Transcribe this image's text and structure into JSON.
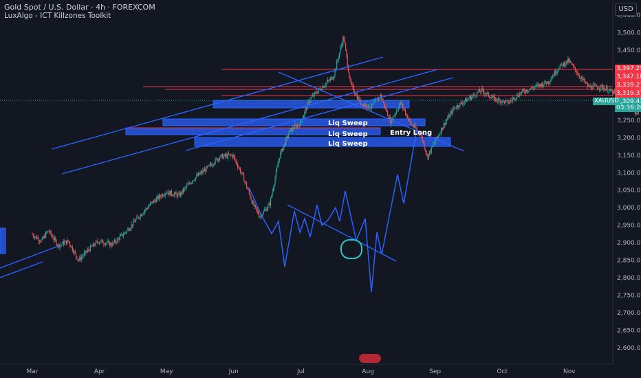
{
  "header": {
    "symbol_line": "Gold Spot / U.S. Dollar · 4h · FOREXCOM",
    "indicator_line": "LuxAlgo - ICT Killzones Toolkit"
  },
  "currency_button": "USD",
  "price_tags": [
    {
      "label": "3,397.25",
      "value": 3397.25,
      "color": "#f23645"
    },
    {
      "label": "3,347.18",
      "value": 3347.18,
      "color": "#f23645"
    },
    {
      "label": "3,339.27",
      "value": 3339.27,
      "color": "#f23645"
    },
    {
      "label": "3,319.37",
      "value": 3319.37,
      "color": "#f23645"
    },
    {
      "label": "3,309.43",
      "value": 3309.43,
      "color": "#26a69a"
    },
    {
      "label": "03:36:26",
      "value": 3291,
      "color": "#26a69a"
    }
  ],
  "symbol_tag": "XAUUSD",
  "colors": {
    "background": "#131722",
    "up": "#26a69a",
    "down": "#ef5350",
    "drawing": "#2962ff",
    "marker": "#26c6c6",
    "resistance": "#f23645"
  },
  "chart_data": {
    "type": "candlestick",
    "title": "Gold Spot / U.S. Dollar · 4h · FOREXCOM",
    "x_ticks": [
      "Mar",
      "Apr",
      "May",
      "Jun",
      "Jul",
      "Aug",
      "Sep",
      "Oct",
      "Nov"
    ],
    "y_ticks": [
      3550,
      3500,
      3450,
      3400,
      3350,
      3300,
      3250,
      3200,
      3150,
      3100,
      3050,
      3000,
      2950,
      2900,
      2850,
      2800,
      2750,
      2700,
      2650,
      2600
    ],
    "y_range": [
      2570,
      3570
    ],
    "last_price": 3309.43,
    "price_path": [
      [
        0,
        2925
      ],
      [
        0.15,
        2905
      ],
      [
        0.25,
        2935
      ],
      [
        0.4,
        2892
      ],
      [
        0.55,
        2905
      ],
      [
        0.7,
        2850
      ],
      [
        0.85,
        2880
      ],
      [
        1.0,
        2905
      ],
      [
        1.2,
        2895
      ],
      [
        1.4,
        2930
      ],
      [
        1.6,
        2975
      ],
      [
        1.8,
        3015
      ],
      [
        2.0,
        3045
      ],
      [
        2.2,
        3035
      ],
      [
        2.4,
        3080
      ],
      [
        2.6,
        3110
      ],
      [
        2.8,
        3145
      ],
      [
        3.0,
        3150
      ],
      [
        3.15,
        3090
      ],
      [
        3.3,
        3010
      ],
      [
        3.4,
        2975
      ],
      [
        3.55,
        3010
      ],
      [
        3.7,
        3150
      ],
      [
        3.85,
        3220
      ],
      [
        4.0,
        3240
      ],
      [
        4.15,
        3310
      ],
      [
        4.3,
        3340
      ],
      [
        4.5,
        3375
      ],
      [
        4.65,
        3490
      ],
      [
        4.75,
        3355
      ],
      [
        4.9,
        3300
      ],
      [
        5.05,
        3285
      ],
      [
        5.2,
        3320
      ],
      [
        5.35,
        3245
      ],
      [
        5.5,
        3300
      ],
      [
        5.65,
        3240
      ],
      [
        5.8,
        3210
      ],
      [
        5.9,
        3145
      ],
      [
        6.0,
        3185
      ],
      [
        6.15,
        3240
      ],
      [
        6.3,
        3285
      ],
      [
        6.5,
        3310
      ],
      [
        6.7,
        3335
      ],
      [
        6.9,
        3310
      ],
      [
        7.1,
        3300
      ],
      [
        7.3,
        3330
      ],
      [
        7.5,
        3345
      ],
      [
        7.7,
        3360
      ],
      [
        7.85,
        3400
      ],
      [
        8.0,
        3420
      ],
      [
        8.15,
        3380
      ],
      [
        8.3,
        3345
      ],
      [
        8.5,
        3345
      ],
      [
        8.7,
        3325
      ],
      [
        8.85,
        3310
      ],
      [
        9.0,
        3270
      ],
      [
        9.15,
        3300
      ],
      [
        9.3,
        3335
      ],
      [
        9.45,
        3340
      ],
      [
        9.6,
        3315
      ],
      [
        9.75,
        3300
      ],
      [
        9.9,
        3290
      ],
      [
        10.05,
        3320
      ],
      [
        10.2,
        3355
      ],
      [
        10.35,
        3340
      ],
      [
        10.5,
        3330
      ],
      [
        10.65,
        3310
      ],
      [
        10.75,
        3385
      ],
      [
        10.85,
        3430
      ],
      [
        10.95,
        3395
      ],
      [
        11.05,
        3350
      ],
      [
        11.15,
        3309
      ]
    ],
    "annotations": [
      {
        "type": "text",
        "text": "Liq Sweep",
        "x": 5.4,
        "price": 3245
      },
      {
        "type": "text",
        "text": "Liq Sweep",
        "x": 5.4,
        "price": 3210
      },
      {
        "type": "text",
        "text": "Liq Sweep",
        "x": 5.4,
        "price": 3183
      },
      {
        "type": "text",
        "text": "Entry Long",
        "x": 6.2,
        "price": 3212
      }
    ]
  }
}
